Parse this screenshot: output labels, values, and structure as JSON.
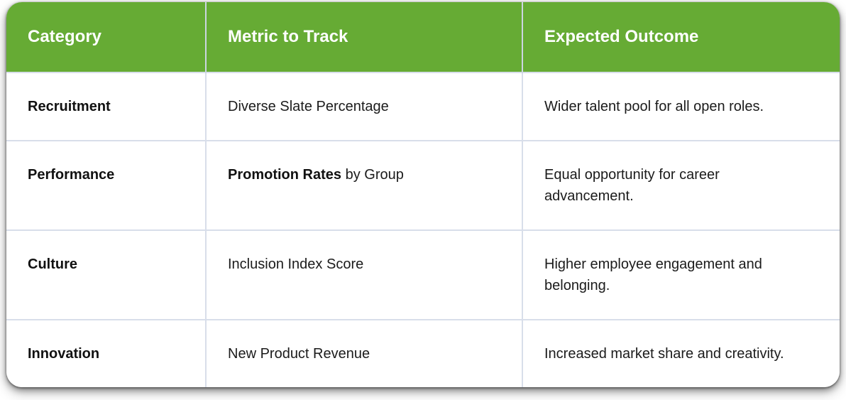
{
  "colors": {
    "header_bg": "#66ab34",
    "header_text": "#ffffff",
    "body_text": "#1b1b1b",
    "border": "#d8deea",
    "card_bg": "#ffffff"
  },
  "table": {
    "columns": [
      {
        "label": "Category"
      },
      {
        "label": "Metric to Track"
      },
      {
        "label": "Expected Outcome"
      }
    ],
    "rows": [
      {
        "category": "Recruitment",
        "metric_bold": "",
        "metric_rest": "Diverse Slate Percentage",
        "outcome": "Wider talent pool for all open roles."
      },
      {
        "category": "Performance",
        "metric_bold": "Promotion Rates",
        "metric_rest": " by Group",
        "outcome": "Equal opportunity for career\nadvancement."
      },
      {
        "category": "Culture",
        "metric_bold": "",
        "metric_rest": "Inclusion Index Score",
        "outcome": "Higher employee engagement and\nbelonging."
      },
      {
        "category": "Innovation",
        "metric_bold": "",
        "metric_rest": "New Product Revenue",
        "outcome": "Increased market share and creativity."
      }
    ]
  }
}
